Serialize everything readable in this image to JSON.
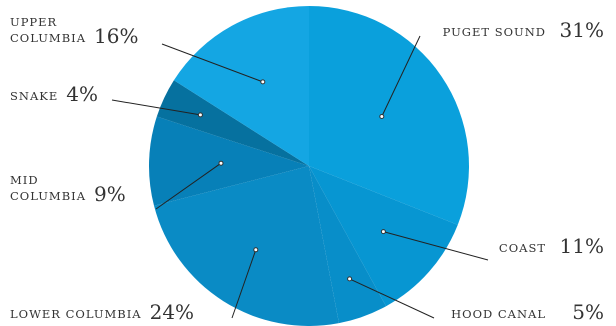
{
  "chart_data": {
    "type": "pie",
    "start_angle_deg": 0,
    "direction": "clockwise",
    "slices": [
      {
        "name_lines": [
          "puget sound"
        ],
        "value": 31,
        "pct_label": "31%",
        "color": "#0aa0dc"
      },
      {
        "name_lines": [
          "coast"
        ],
        "value": 11,
        "pct_label": "11%",
        "color": "#0796d2"
      },
      {
        "name_lines": [
          "hood canal"
        ],
        "value": 5,
        "pct_label": "5%",
        "color": "#088ec9"
      },
      {
        "name_lines": [
          "lower columbia"
        ],
        "value": 24,
        "pct_label": "24%",
        "color": "#0a8bc5"
      },
      {
        "name_lines": [
          "mid",
          "columbia"
        ],
        "value": 9,
        "pct_label": "9%",
        "color": "#0780b8"
      },
      {
        "name_lines": [
          "snake"
        ],
        "value": 4,
        "pct_label": "4%",
        "color": "#06719f"
      },
      {
        "name_lines": [
          "upper",
          "columbia"
        ],
        "value": 16,
        "pct_label": "16%",
        "color": "#14a6e3"
      }
    ]
  }
}
